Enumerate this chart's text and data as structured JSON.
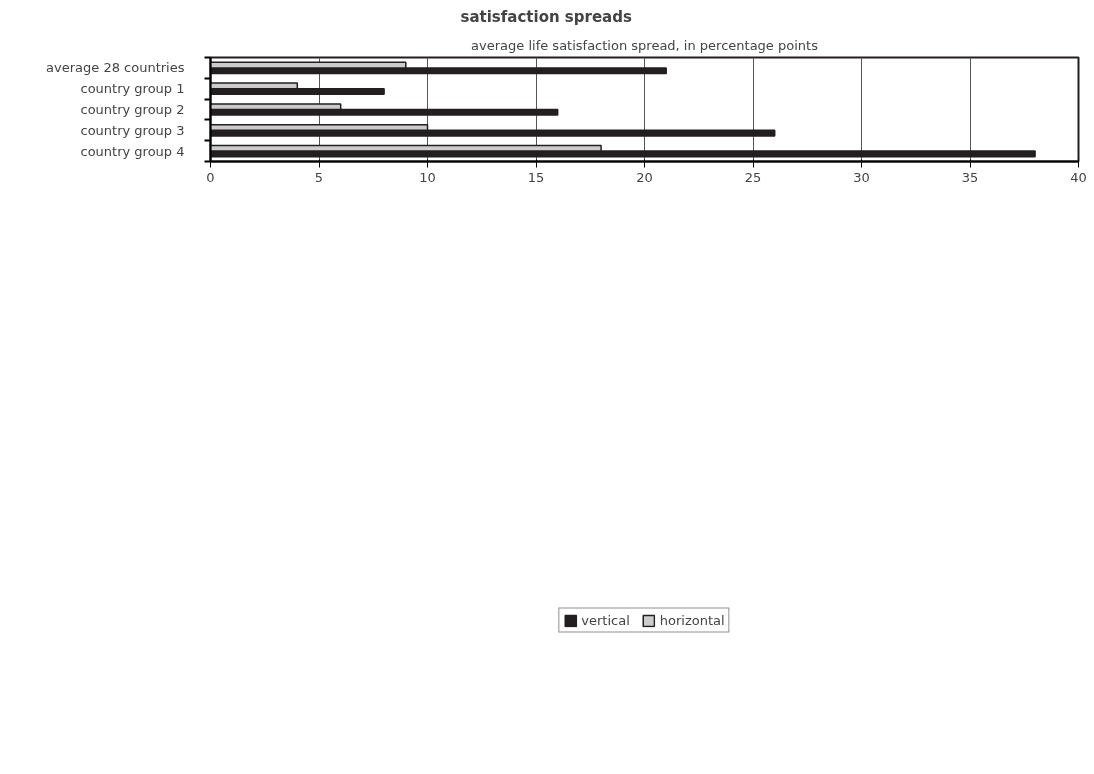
{
  "chart_data": {
    "type": "bar",
    "orientation": "horizontal",
    "title": "satisfaction spreads",
    "subtitle": "average life satisfaction spread, in percentage points",
    "categories": [
      "average 28 countries",
      "country group 1",
      "country group 2",
      "country group 3",
      "country group 4"
    ],
    "series": [
      {
        "name": "vertical",
        "color": "#231f20",
        "values": [
          21,
          8,
          16,
          26,
          38
        ]
      },
      {
        "name": "horizontal",
        "color": "#cccccc",
        "values": [
          9,
          4,
          6,
          10,
          18
        ]
      }
    ],
    "xlim": [
      0,
      40
    ],
    "xticks": [
      0,
      5,
      10,
      15,
      20,
      25,
      30,
      35,
      40
    ],
    "grid": "x",
    "legend": "bottom"
  }
}
